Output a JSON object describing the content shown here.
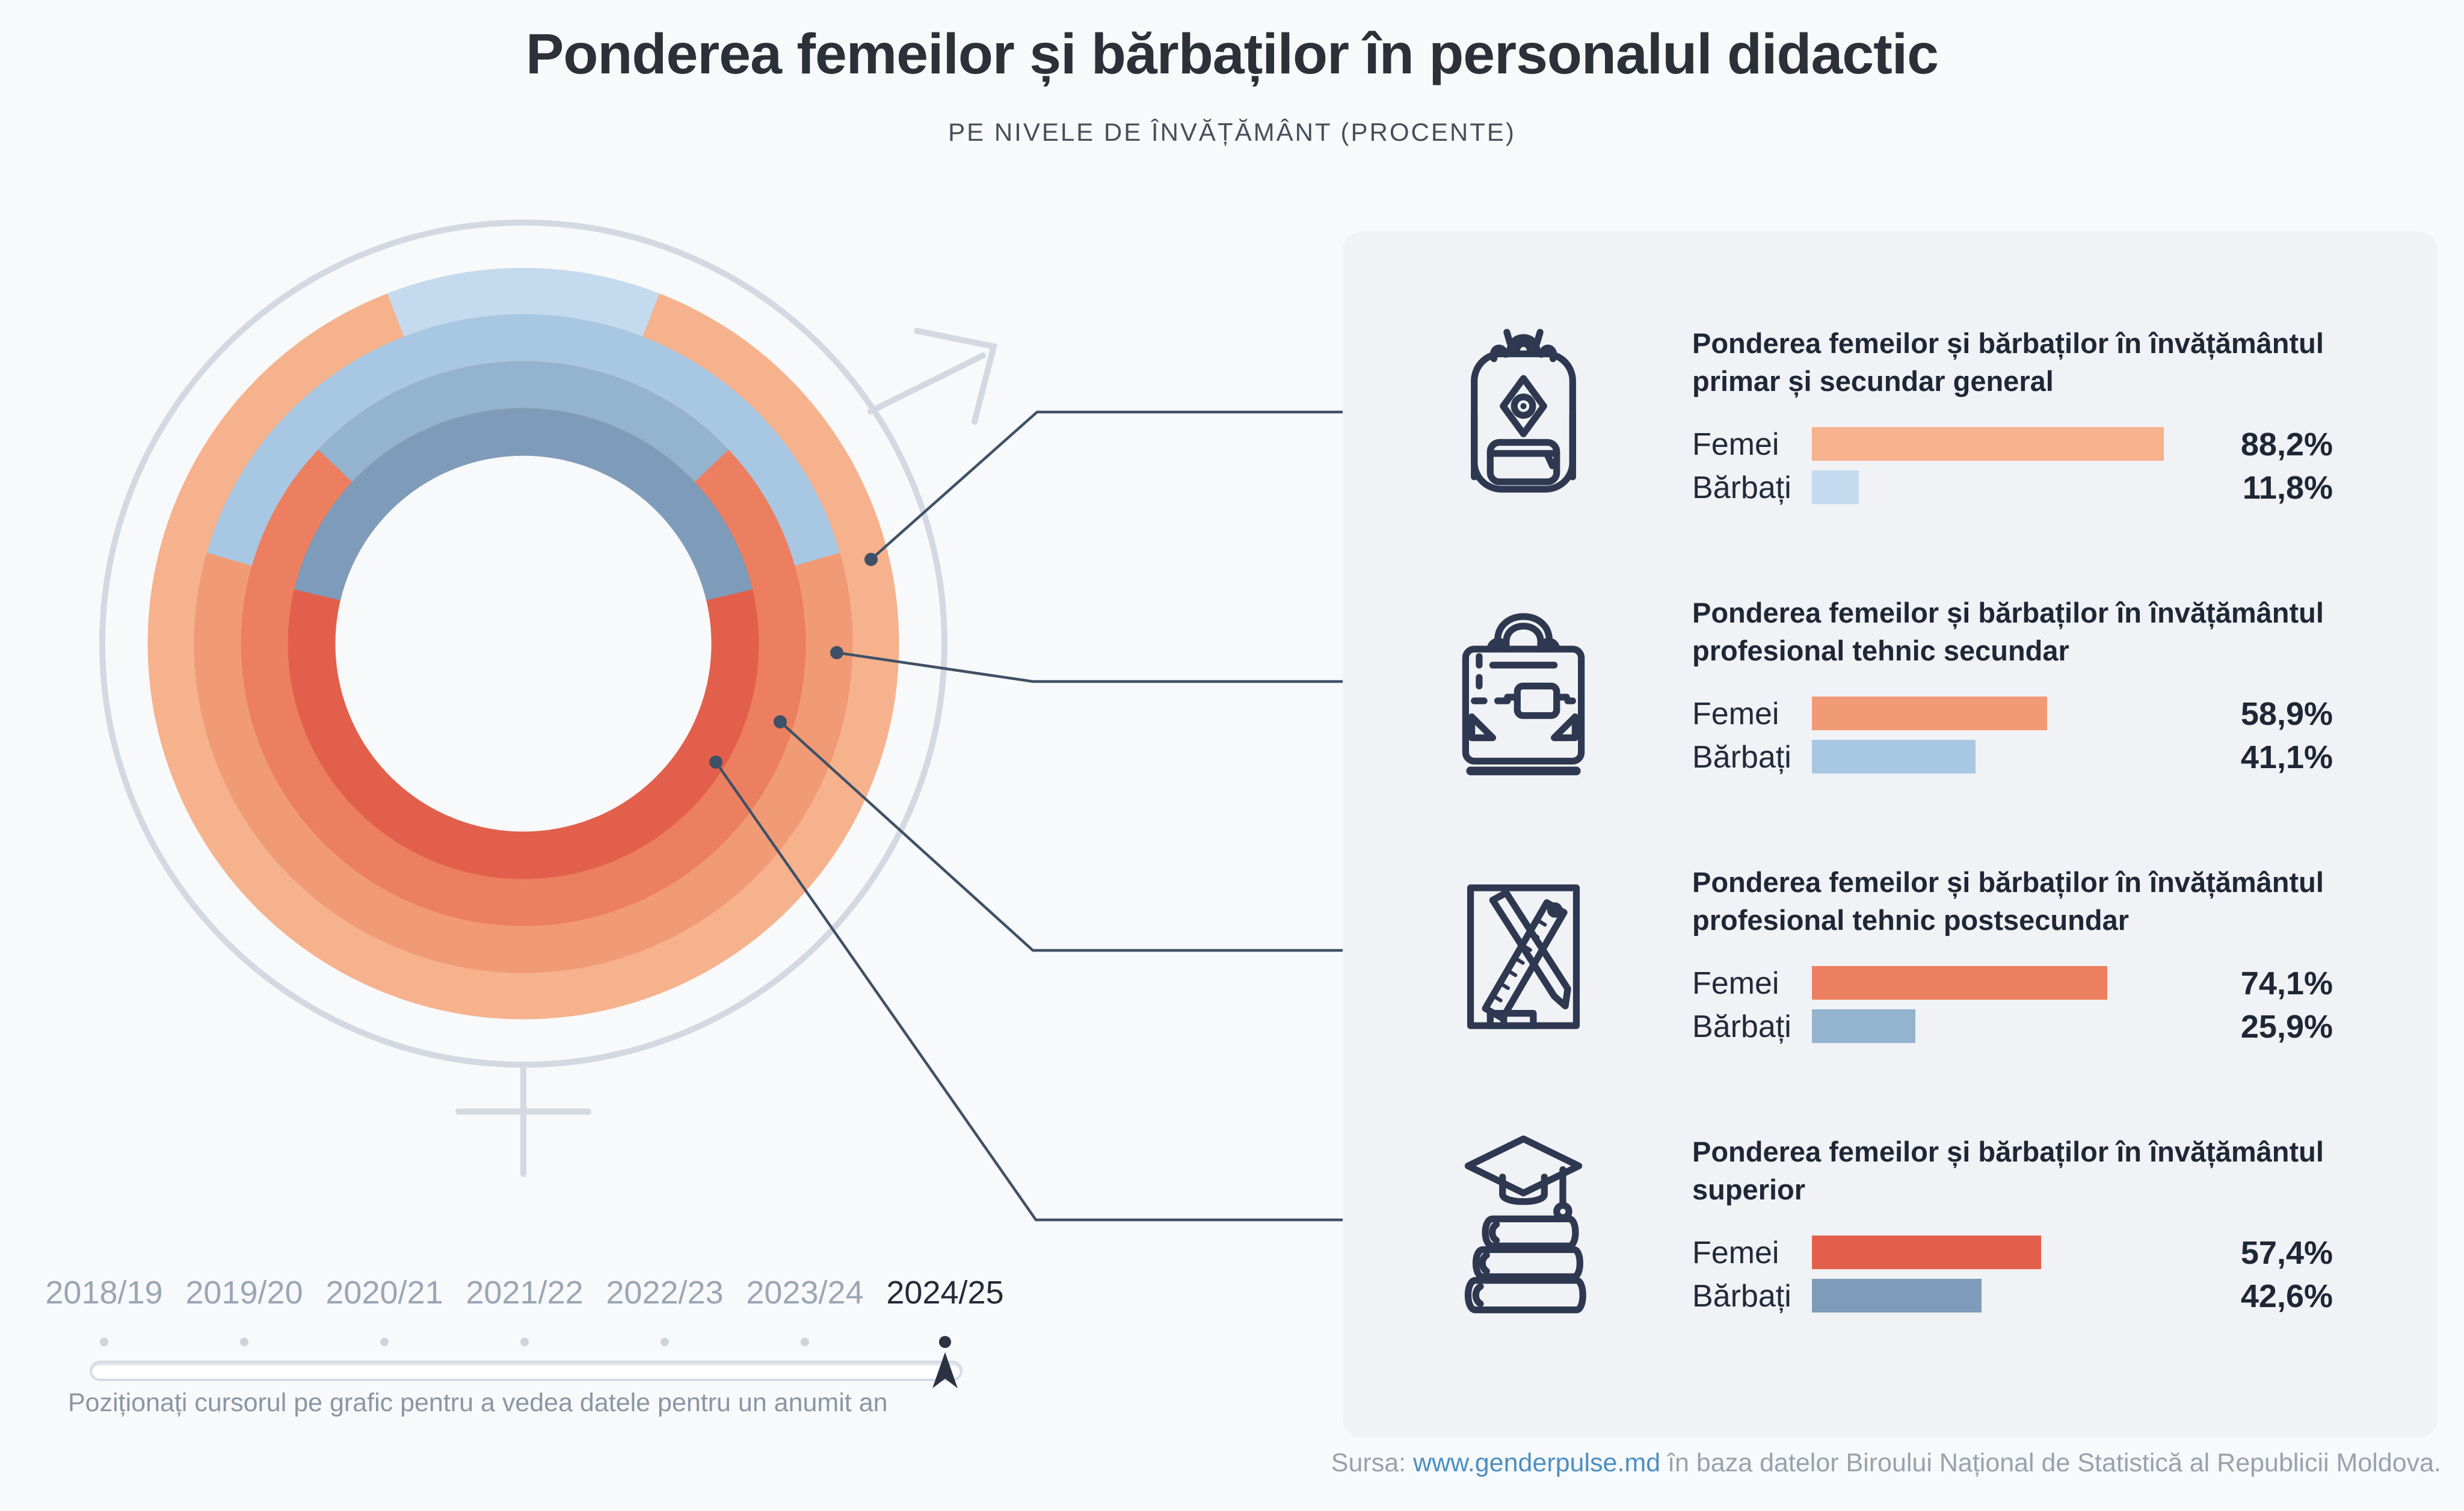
{
  "page": {
    "title": "Ponderea femeilor și bărbaților în personalul didactic",
    "subtitle": "PE NIVELE DE ÎNVĂȚĂMÂNT (PROCENTE)"
  },
  "chart_data": {
    "type": "donut",
    "title": "Ponderea femeilor și bărbaților în personalul didactic",
    "subtitle": "PE NIVELE DE ÎNVĂȚĂMÂNT (PROCENTE)",
    "unit": "%",
    "year": "2024/25",
    "rings_order": "outermost to innermost",
    "barbati_arc": "centered at 12 o'clock",
    "rings": [
      {
        "level": "învățământul primar și secundar general",
        "femei_pct": 88.2,
        "barbati_pct": 11.8,
        "femei_color": "#f6b28d",
        "barbati_color": "#c4daee"
      },
      {
        "level": "învățământul profesional tehnic secundar",
        "femei_pct": 58.9,
        "barbati_pct": 41.1,
        "femei_color": "#f19a76",
        "barbati_color": "#a8c7e2"
      },
      {
        "level": "învățământul profesional tehnic postsecundar",
        "femei_pct": 74.1,
        "barbati_pct": 25.9,
        "femei_color": "#ec7f60",
        "barbati_color": "#93b3cf"
      },
      {
        "level": "învățământul superior",
        "femei_pct": 57.4,
        "barbati_pct": 42.6,
        "femei_color": "#e2604b",
        "barbati_color": "#7e9cba"
      }
    ]
  },
  "panels": [
    {
      "icon": "backpack-icon",
      "title_line1": "Ponderea femeilor și bărbaților în învățământul",
      "title_line2": "primar și secundar general",
      "femei": {
        "label": "Femei",
        "display": "88,2%"
      },
      "barbati": {
        "label": "Bărbați",
        "display": "11,8%"
      }
    },
    {
      "icon": "briefcase-icon",
      "title_line1": "Ponderea femeilor și bărbaților în învățământul",
      "title_line2": "profesional tehnic secundar",
      "femei": {
        "label": "Femei",
        "display": "58,9%"
      },
      "barbati": {
        "label": "Bărbați",
        "display": "41,1%"
      }
    },
    {
      "icon": "pencil-ruler-icon",
      "title_line1": "Ponderea femeilor și bărbaților în învățământul",
      "title_line2": "profesional tehnic postsecundar",
      "femei": {
        "label": "Femei",
        "display": "74,1%"
      },
      "barbati": {
        "label": "Bărbați",
        "display": "25,9%"
      }
    },
    {
      "icon": "graduation-books-icon",
      "title_line1": "Ponderea femeilor și bărbaților în învățământul",
      "title_line2": "superior",
      "femei": {
        "label": "Femei",
        "display": "57,4%"
      },
      "barbati": {
        "label": "Bărbați",
        "display": "42,6%"
      }
    }
  ],
  "timeline": {
    "years": [
      "2018/19",
      "2019/20",
      "2020/21",
      "2021/22",
      "2022/23",
      "2023/24",
      "2024/25"
    ],
    "active_index": 6,
    "active_year": "2024/25",
    "hint": "Poziționați cursorul pe grafic pentru a vedea datele pentru un anumit an"
  },
  "source": {
    "prefix": "Sursa: ",
    "link": "www.genderpulse.md",
    "suffix": " în baza datelor Biroului Național de Statistică al Republicii Moldova."
  },
  "colors": {
    "page_bg": "#f8f9fa",
    "panel_bg": "#f0f2f5",
    "connector": "#3f5166",
    "gender_symbol": "#d2d9e2",
    "icon_stroke": "#2e3850",
    "pin": "#2b3343",
    "year_inactive": "#9ba6b4",
    "year_active": "#232a38",
    "link": "#4a8fc4"
  }
}
